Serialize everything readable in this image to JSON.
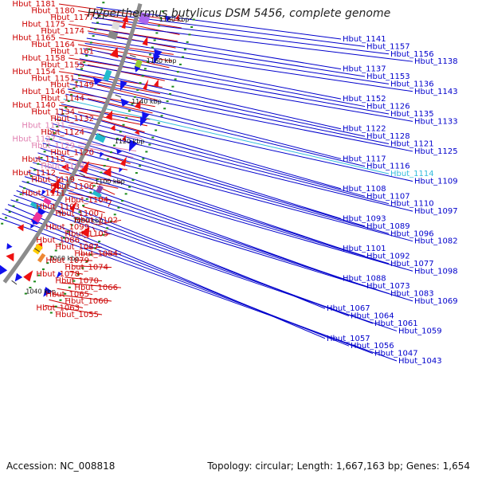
{
  "title": "Hyperthermus butylicus DSM 5456, complete genome",
  "footer": {
    "accession": "Accession: NC_008818",
    "summary": "Topology: circular; Length: 1,667,163 bp; Genes: 1,654"
  },
  "colors": {
    "left_label": "#cc0000",
    "left_label_faded": "#e07fb0",
    "right_label": "#0000cc",
    "right_label_highlight": "#33bbdd",
    "backbone": "#8c8c8c",
    "tick_dot": "#1a8a1a",
    "forward_gene": "#ee1111",
    "reverse_gene": "#1111ee"
  },
  "kbp_markers": [
    "1180 kbp",
    "1160 kbp",
    "1140 kbp",
    "1120 kbp",
    "1100 kbp",
    "1080 kbp",
    "1060 kbp",
    "1040 kbp"
  ],
  "left_labels": [
    {
      "text": "Hbut_1181",
      "tone": "normal"
    },
    {
      "text": "Hbut_1180",
      "tone": "normal"
    },
    {
      "text": "Hbut_1177",
      "tone": "normal"
    },
    {
      "text": "Hbut_1175",
      "tone": "normal"
    },
    {
      "text": "Hbut_1174",
      "tone": "normal"
    },
    {
      "text": "Hbut_1165",
      "tone": "normal"
    },
    {
      "text": "Hbut_1164",
      "tone": "normal"
    },
    {
      "text": "Hbut_1161",
      "tone": "normal"
    },
    {
      "text": "Hbut_1158",
      "tone": "normal"
    },
    {
      "text": "Hbut_1155",
      "tone": "normal"
    },
    {
      "text": "Hbut_1154",
      "tone": "normal"
    },
    {
      "text": "Hbut_1151",
      "tone": "normal"
    },
    {
      "text": "Hbut_1149",
      "tone": "normal"
    },
    {
      "text": "Hbut_1146",
      "tone": "normal"
    },
    {
      "text": "Hbut_1144",
      "tone": "normal"
    },
    {
      "text": "Hbut_1140",
      "tone": "normal"
    },
    {
      "text": "Hbut_1134",
      "tone": "normal"
    },
    {
      "text": "Hbut_1132",
      "tone": "normal"
    },
    {
      "text": "Hbut_1131",
      "tone": "faded"
    },
    {
      "text": "Hbut_1124",
      "tone": "normal"
    },
    {
      "text": "Hbut_1127",
      "tone": "faded"
    },
    {
      "text": "Hbut_1129",
      "tone": "faded"
    },
    {
      "text": "Hbut_1120",
      "tone": "normal"
    },
    {
      "text": "Hbut_1115",
      "tone": "normal"
    },
    {
      "text": "Hbut_1118",
      "tone": "faded"
    },
    {
      "text": "Hbut_1112",
      "tone": "normal"
    },
    {
      "text": "Hbut_1119",
      "tone": "normal"
    },
    {
      "text": "Hbut_1106",
      "tone": "normal"
    },
    {
      "text": "Hbut_1111",
      "tone": "normal"
    },
    {
      "text": "Hbut_1104",
      "tone": "normal"
    },
    {
      "text": "Hbut_1103",
      "tone": "normal"
    },
    {
      "text": "Hbut_1100",
      "tone": "normal"
    },
    {
      "text": "Hbut_1102",
      "tone": "normal"
    },
    {
      "text": "Hbut_1099",
      "tone": "normal"
    },
    {
      "text": "Hbut_1105",
      "tone": "normal"
    },
    {
      "text": "Hbut_1086",
      "tone": "normal"
    },
    {
      "text": "Hbut_1087",
      "tone": "normal"
    },
    {
      "text": "Hbut_1084",
      "tone": "normal"
    },
    {
      "text": "Hbut_1079",
      "tone": "normal"
    },
    {
      "text": "Hbut_1074",
      "tone": "normal"
    },
    {
      "text": "Hbut_1078",
      "tone": "normal"
    },
    {
      "text": "Hbut_1070",
      "tone": "normal"
    },
    {
      "text": "Hbut_1066",
      "tone": "normal"
    },
    {
      "text": "Hbut_1065",
      "tone": "normal"
    },
    {
      "text": "Hbut_1060",
      "tone": "normal"
    },
    {
      "text": "Hbut_1063",
      "tone": "normal"
    },
    {
      "text": "Hbut_1055",
      "tone": "normal"
    }
  ],
  "right_labels": [
    {
      "text": "Hbut_1141",
      "tone": "normal"
    },
    {
      "text": "Hbut_1157",
      "tone": "normal"
    },
    {
      "text": "Hbut_1156",
      "tone": "normal"
    },
    {
      "text": "Hbut_1138",
      "tone": "normal"
    },
    {
      "text": "Hbut_1137",
      "tone": "normal"
    },
    {
      "text": "Hbut_1153",
      "tone": "normal"
    },
    {
      "text": "Hbut_1136",
      "tone": "normal"
    },
    {
      "text": "Hbut_1143",
      "tone": "normal"
    },
    {
      "text": "Hbut_1152",
      "tone": "normal"
    },
    {
      "text": "Hbut_1126",
      "tone": "normal"
    },
    {
      "text": "Hbut_1135",
      "tone": "normal"
    },
    {
      "text": "Hbut_1133",
      "tone": "normal"
    },
    {
      "text": "Hbut_1122",
      "tone": "normal"
    },
    {
      "text": "Hbut_1128",
      "tone": "normal"
    },
    {
      "text": "Hbut_1121",
      "tone": "normal"
    },
    {
      "text": "Hbut_1125",
      "tone": "normal"
    },
    {
      "text": "Hbut_1117",
      "tone": "normal"
    },
    {
      "text": "Hbut_1116",
      "tone": "normal"
    },
    {
      "text": "Hbut_1114",
      "tone": "highlight"
    },
    {
      "text": "Hbut_1109",
      "tone": "normal"
    },
    {
      "text": "Hbut_1108",
      "tone": "normal"
    },
    {
      "text": "Hbut_1107",
      "tone": "normal"
    },
    {
      "text": "Hbut_1110",
      "tone": "normal"
    },
    {
      "text": "Hbut_1097",
      "tone": "normal"
    },
    {
      "text": "Hbut_1093",
      "tone": "normal"
    },
    {
      "text": "Hbut_1089",
      "tone": "normal"
    },
    {
      "text": "Hbut_1096",
      "tone": "normal"
    },
    {
      "text": "Hbut_1082",
      "tone": "normal"
    },
    {
      "text": "Hbut_1101",
      "tone": "normal"
    },
    {
      "text": "Hbut_1092",
      "tone": "normal"
    },
    {
      "text": "Hbut_1077",
      "tone": "normal"
    },
    {
      "text": "Hbut_1098",
      "tone": "normal"
    },
    {
      "text": "Hbut_1088",
      "tone": "normal"
    },
    {
      "text": "Hbut_1073",
      "tone": "normal"
    },
    {
      "text": "Hbut_1083",
      "tone": "normal"
    },
    {
      "text": "Hbut_1069",
      "tone": "normal"
    },
    {
      "text": "Hbut_1067",
      "tone": "normal"
    },
    {
      "text": "Hbut_1064",
      "tone": "normal"
    },
    {
      "text": "Hbut_1061",
      "tone": "normal"
    },
    {
      "text": "Hbut_1059",
      "tone": "normal"
    },
    {
      "text": "Hbut_1057",
      "tone": "normal"
    },
    {
      "text": "Hbut_1056",
      "tone": "normal"
    },
    {
      "text": "Hbut_1047",
      "tone": "normal"
    },
    {
      "text": "Hbut_1043",
      "tone": "normal"
    }
  ]
}
